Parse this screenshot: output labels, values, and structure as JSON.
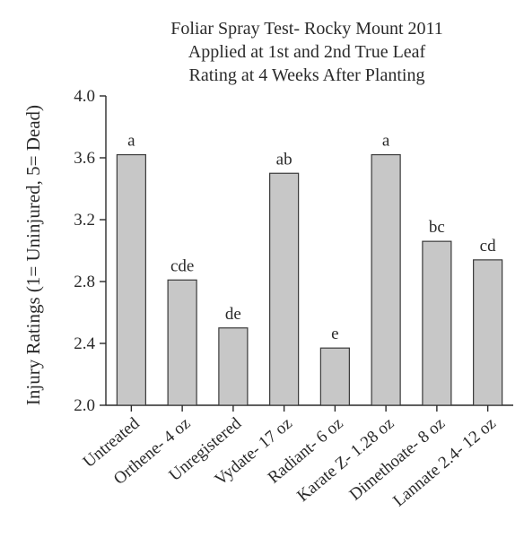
{
  "chart_data": {
    "type": "bar",
    "title": [
      "Foliar Spray Test- Rocky Mount 2011",
      "Applied at 1st and 2nd True Leaf",
      "Rating at 4 Weeks After Planting"
    ],
    "xlabel": "",
    "ylabel": "Injury Ratings (1= Uninjured, 5= Dead)",
    "ylim": [
      2.0,
      4.0
    ],
    "yticks": [
      "2.0",
      "2.4",
      "2.8",
      "3.2",
      "3.6",
      "4.0"
    ],
    "categories": [
      "Untreated",
      "Orthene- 4 oz",
      "Unregistered",
      "Vydate- 17 oz",
      "Radiant- 6 oz",
      "Karate Z- 1.28 oz",
      "Dimethoate- 8 oz",
      "Lannate 2.4- 12 oz"
    ],
    "values": [
      3.62,
      2.81,
      2.5,
      3.5,
      2.37,
      3.62,
      3.06,
      2.94
    ],
    "bar_labels": [
      "a",
      "cde",
      "de",
      "ab",
      "e",
      "a",
      "bc",
      "cd"
    ],
    "bar_color": "#c7c7c7",
    "grid": false,
    "legend": "none"
  }
}
